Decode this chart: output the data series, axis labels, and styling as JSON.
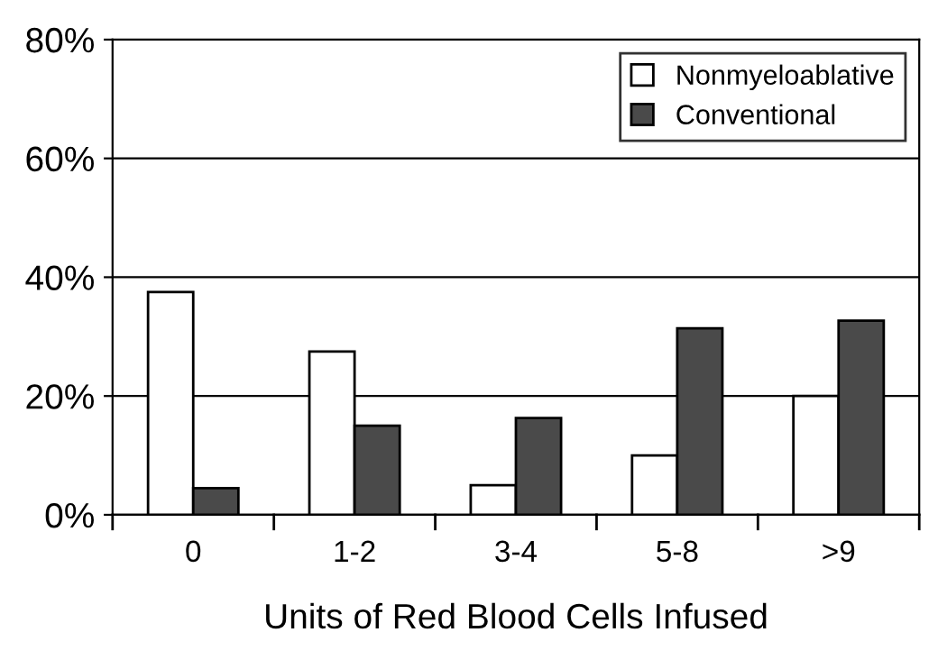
{
  "chart_data": {
    "type": "bar",
    "xlabel": "Units of Red Blood Cells Infused",
    "categories": [
      "0",
      "1-2",
      "3-4",
      "5-8",
      ">9"
    ],
    "series": [
      {
        "name": "Nonmyeloablative",
        "color": "#ffffff",
        "values": [
          37.5,
          27.5,
          5,
          10,
          20
        ]
      },
      {
        "name": "Conventional",
        "color": "#4a4a4a",
        "values": [
          4.5,
          15,
          16.3,
          31.4,
          32.7
        ]
      }
    ],
    "ylim": [
      0,
      80
    ],
    "yticks": [
      {
        "value": 0,
        "label": "0%"
      },
      {
        "value": 20,
        "label": "20%"
      },
      {
        "value": 40,
        "label": "40%"
      },
      {
        "value": 60,
        "label": "60%"
      },
      {
        "value": 80,
        "label": "80%"
      }
    ],
    "grid": "y",
    "legend": "top right"
  }
}
